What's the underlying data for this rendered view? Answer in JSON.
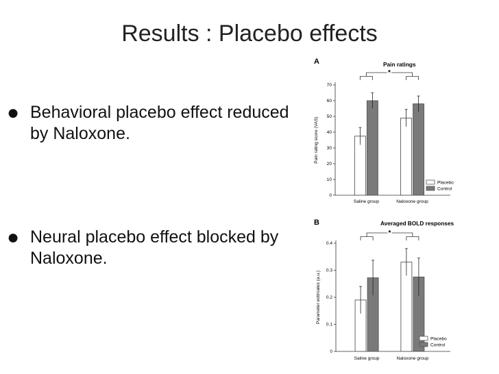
{
  "slide": {
    "title": "Results : Placebo effects",
    "bullets": [
      {
        "symbol": "●",
        "text": "Behavioral placebo effect reduced by Naloxone."
      },
      {
        "symbol": "●",
        "text": "Neural placebo effect blocked by Naloxone."
      }
    ]
  },
  "colors": {
    "control": "#7a7a7a",
    "placebo": "#ffffff",
    "stroke": "#555555"
  },
  "chart_data": [
    {
      "type": "bar",
      "panel_label": "A",
      "title": "Pain ratings",
      "ylabel": "Pain rating score (VAS)",
      "xlabel": "",
      "categories": [
        "Saline group",
        "Naloxone group"
      ],
      "series": [
        {
          "name": "Placebo",
          "values": [
            37.5,
            49
          ],
          "errors": [
            5.5,
            5.5
          ]
        },
        {
          "name": "Control",
          "values": [
            60,
            58
          ],
          "errors": [
            5,
            5
          ]
        }
      ],
      "ylim": [
        0,
        70
      ],
      "yticks": [
        "0",
        "10",
        "20",
        "30",
        "40",
        "50",
        "60",
        "70"
      ],
      "significance": "*",
      "legend": [
        "Placebo",
        "Control"
      ]
    },
    {
      "type": "bar",
      "panel_label": "B",
      "title": "Averaged BOLD responses",
      "ylabel": "Parameter estimates (a.u.)",
      "xlabel": "",
      "categories": [
        "Saline group",
        "Naloxone group"
      ],
      "series": [
        {
          "name": "Placebo",
          "values": [
            0.19,
            0.33
          ],
          "errors": [
            0.05,
            0.05
          ]
        },
        {
          "name": "Control",
          "values": [
            0.272,
            0.275
          ],
          "errors": [
            0.065,
            0.07
          ]
        }
      ],
      "ylim": [
        0,
        0.4
      ],
      "yticks": [
        "0",
        "0.1",
        "0.2",
        "0.3",
        "0.4"
      ],
      "significance": "*",
      "legend": [
        "Placebo",
        "Control"
      ]
    }
  ]
}
